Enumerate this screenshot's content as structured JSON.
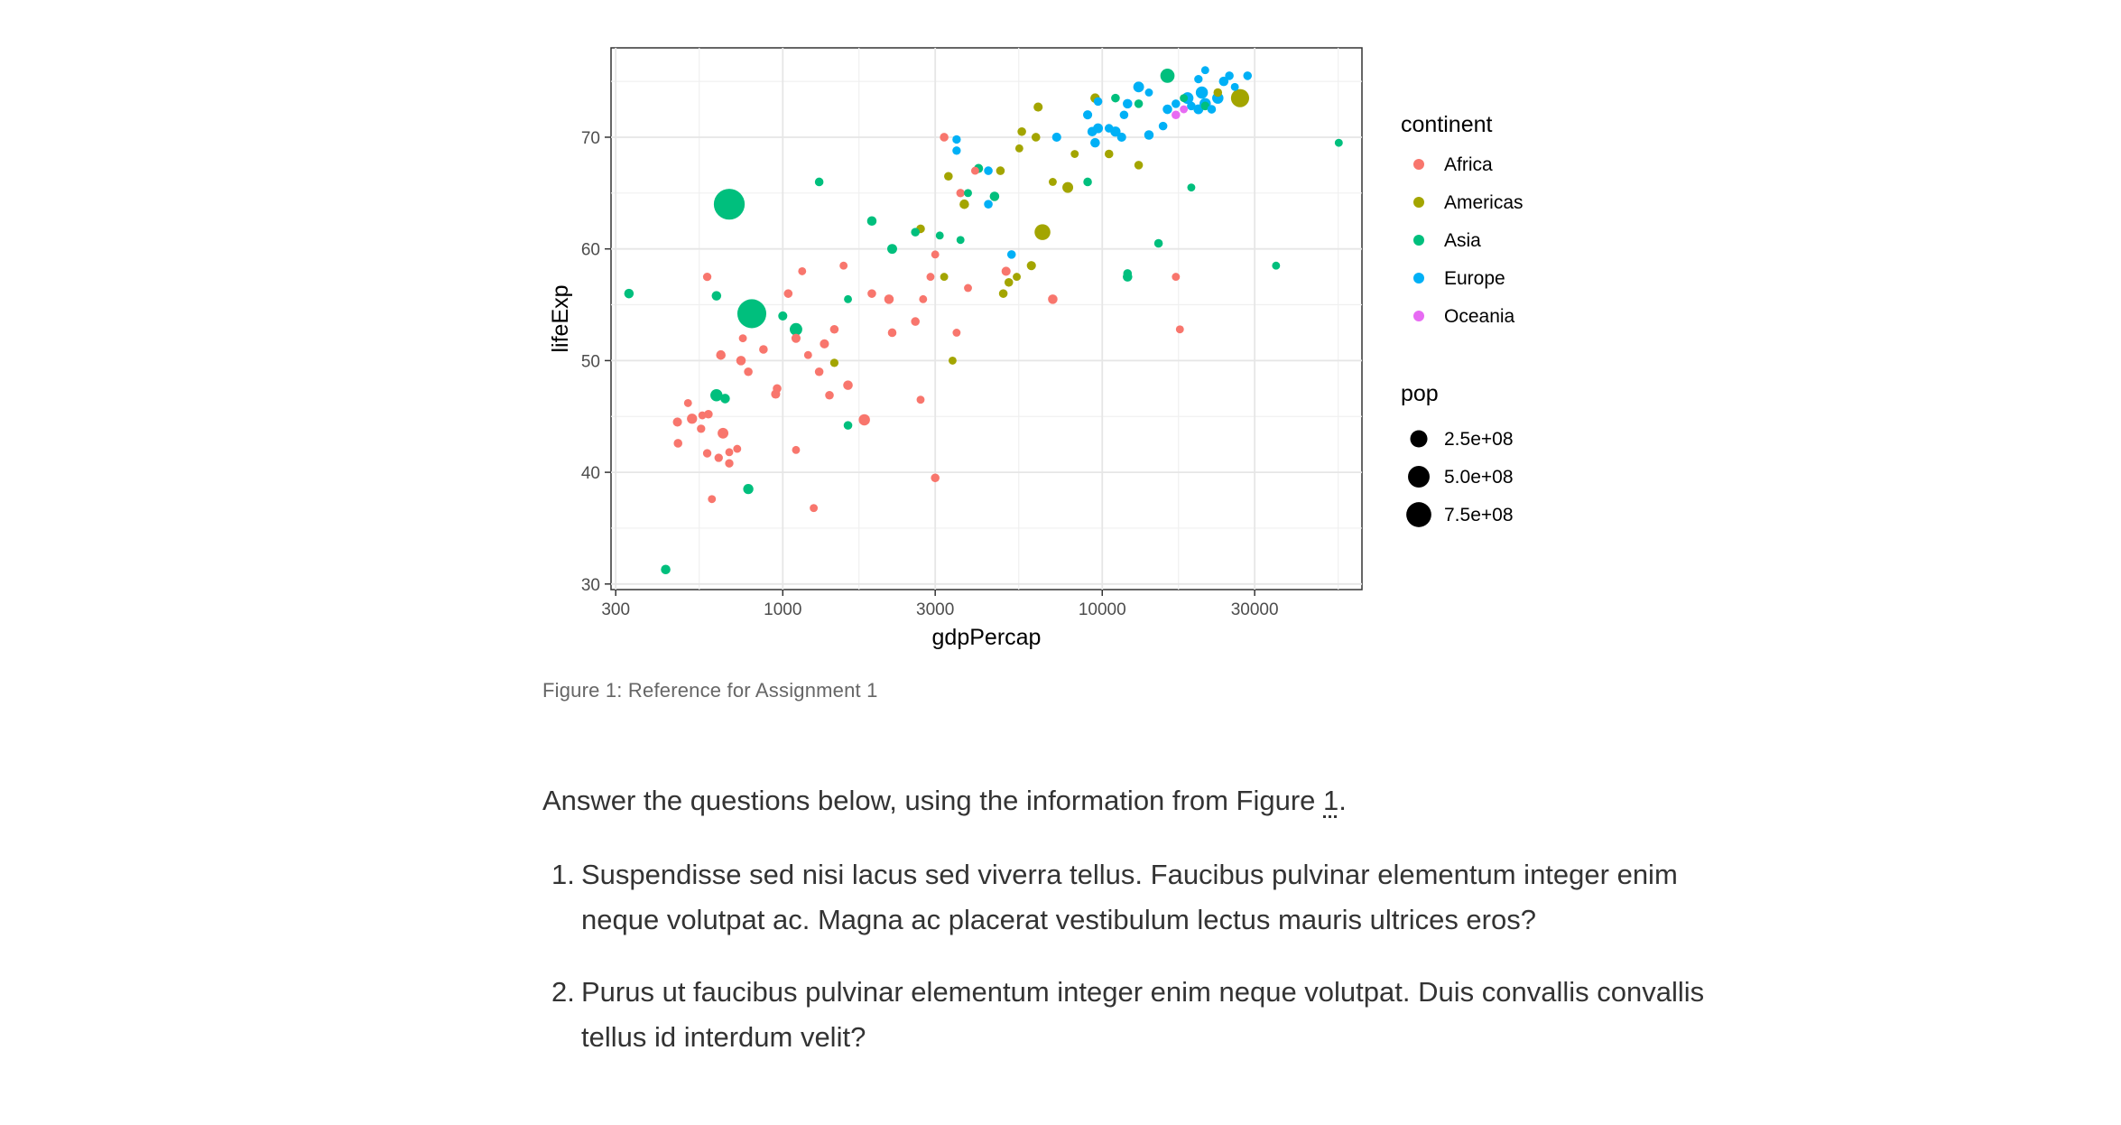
{
  "figure": {
    "caption": "Figure 1: Reference for Assignment 1"
  },
  "chart_data": {
    "type": "scatter",
    "title": "",
    "xlabel": "gdpPercap",
    "ylabel": "lifeExp",
    "x_scale": "log10",
    "xlim": [
      290,
      65000
    ],
    "ylim": [
      29.5,
      78
    ],
    "x_ticks": [
      300,
      1000,
      3000,
      10000,
      30000
    ],
    "x_tick_labels": [
      "300",
      "1000",
      "3000",
      "10000",
      "30000"
    ],
    "y_ticks": [
      30,
      40,
      50,
      60,
      70
    ],
    "y_tick_labels": [
      "30",
      "40",
      "50",
      "60",
      "70"
    ],
    "grid": true,
    "legend_position": "right",
    "legend": {
      "color_title": "continent",
      "size_title": "pop",
      "size_breaks": [
        {
          "label": "2.5e+08",
          "value": 250000000
        },
        {
          "label": "5.0e+08",
          "value": 500000000
        },
        {
          "label": "7.5e+08",
          "value": 750000000
        }
      ]
    },
    "series": [
      {
        "name": "Africa",
        "color": "#F8766D",
        "points": [
          [
            468,
            44.5,
            15000000
          ],
          [
            520,
            44.8,
            30000000
          ],
          [
            585,
            45.2,
            10000000
          ],
          [
            470,
            42.6,
            10000000
          ],
          [
            505,
            46.2,
            5000000
          ],
          [
            555,
            43.9,
            8000000
          ],
          [
            560,
            45.1,
            5000000
          ],
          [
            650,
            43.5,
            40000000
          ],
          [
            580,
            41.7,
            8000000
          ],
          [
            630,
            41.3,
            8000000
          ],
          [
            680,
            41.8,
            5000000
          ],
          [
            720,
            42.1,
            5000000
          ],
          [
            680,
            40.8,
            8000000
          ],
          [
            600,
            37.6,
            5000000
          ],
          [
            640,
            50.5,
            20000000
          ],
          [
            740,
            50.0,
            20000000
          ],
          [
            780,
            49.0,
            10000000
          ],
          [
            870,
            51.0,
            10000000
          ],
          [
            950,
            47.0,
            15000000
          ],
          [
            960,
            47.5,
            10000000
          ],
          [
            1100,
            52.0,
            15000000
          ],
          [
            1200,
            50.5,
            5000000
          ],
          [
            1300,
            49.0,
            10000000
          ],
          [
            1350,
            51.5,
            15000000
          ],
          [
            1450,
            52.8,
            10000000
          ],
          [
            1400,
            46.9,
            10000000
          ],
          [
            1600,
            47.8,
            20000000
          ],
          [
            1100,
            42.0,
            5000000
          ],
          [
            1250,
            36.8,
            5000000
          ],
          [
            750,
            52.0,
            5000000
          ],
          [
            580,
            57.5,
            8000000
          ],
          [
            1040,
            56.0,
            10000000
          ],
          [
            1150,
            58.0,
            5000000
          ],
          [
            1550,
            58.5,
            5000000
          ],
          [
            1900,
            56.0,
            10000000
          ],
          [
            2150,
            55.5,
            20000000
          ],
          [
            2750,
            55.5,
            5000000
          ],
          [
            2600,
            53.5,
            10000000
          ],
          [
            2200,
            52.5,
            10000000
          ],
          [
            1800,
            44.7,
            50000000
          ],
          [
            2700,
            46.5,
            5000000
          ],
          [
            3000,
            59.5,
            5000000
          ],
          [
            2900,
            57.5,
            5000000
          ],
          [
            3000,
            39.5,
            10000000
          ],
          [
            3800,
            56.5,
            5000000
          ],
          [
            5000,
            58.0,
            15000000
          ],
          [
            3500,
            52.5,
            5000000
          ],
          [
            7000,
            55.5,
            20000000
          ],
          [
            17000,
            57.5,
            5000000
          ],
          [
            17500,
            52.8,
            5000000
          ],
          [
            3600,
            65.0,
            8000000
          ],
          [
            4000,
            67.0,
            5000000
          ],
          [
            3200,
            70.0,
            10000000
          ]
        ]
      },
      {
        "name": "Americas",
        "color": "#A3A500",
        "points": [
          [
            1450,
            49.8,
            8000000
          ],
          [
            2700,
            61.8,
            10000000
          ],
          [
            3200,
            57.5,
            5000000
          ],
          [
            3300,
            66.5,
            10000000
          ],
          [
            3700,
            64.0,
            20000000
          ],
          [
            3400,
            50.0,
            5000000
          ],
          [
            4800,
            67.0,
            10000000
          ],
          [
            4900,
            56.0,
            10000000
          ],
          [
            5100,
            57.0,
            10000000
          ],
          [
            5400,
            57.5,
            5000000
          ],
          [
            5500,
            69.0,
            5000000
          ],
          [
            5600,
            70.5,
            10000000
          ],
          [
            6000,
            58.5,
            15000000
          ],
          [
            6500,
            61.5,
            190000000
          ],
          [
            6200,
            70.0,
            10000000
          ],
          [
            6300,
            72.7,
            15000000
          ],
          [
            7000,
            66.0,
            5000000
          ],
          [
            7800,
            65.5,
            40000000
          ],
          [
            8200,
            68.5,
            5000000
          ],
          [
            9500,
            73.5,
            20000000
          ],
          [
            10500,
            68.5,
            10000000
          ],
          [
            13000,
            67.5,
            10000000
          ],
          [
            27000,
            73.5,
            300000000
          ],
          [
            23000,
            74.0,
            10000000
          ]
        ]
      },
      {
        "name": "Asia",
        "color": "#00BF7D",
        "points": [
          [
            330,
            56.0,
            20000000
          ],
          [
            430,
            31.3,
            20000000
          ],
          [
            620,
            46.9,
            70000000
          ],
          [
            660,
            46.6,
            20000000
          ],
          [
            620,
            55.8,
            20000000
          ],
          [
            680,
            64.0,
            1300000000
          ],
          [
            800,
            54.2,
            1100000000
          ],
          [
            780,
            38.5,
            30000000
          ],
          [
            1000,
            54.0,
            15000000
          ],
          [
            1100,
            52.8,
            80000000
          ],
          [
            1600,
            55.5,
            5000000
          ],
          [
            1300,
            66.0,
            10000000
          ],
          [
            1600,
            44.2,
            10000000
          ],
          [
            1900,
            62.5,
            20000000
          ],
          [
            2200,
            60.0,
            25000000
          ],
          [
            2600,
            61.5,
            10000000
          ],
          [
            3100,
            61.2,
            5000000
          ],
          [
            3600,
            60.8,
            5000000
          ],
          [
            3800,
            65.0,
            5000000
          ],
          [
            4100,
            67.2,
            15000000
          ],
          [
            4600,
            64.7,
            20000000
          ],
          [
            9000,
            66.0,
            10000000
          ],
          [
            12000,
            57.8,
            10000000
          ],
          [
            12000,
            57.5,
            20000000
          ],
          [
            15000,
            60.5,
            10000000
          ],
          [
            11000,
            73.5,
            10000000
          ],
          [
            13000,
            73.0,
            10000000
          ],
          [
            16000,
            75.5,
            130000000
          ],
          [
            19000,
            65.5,
            5000000
          ],
          [
            21000,
            72.8,
            10000000
          ],
          [
            35000,
            58.5,
            5000000
          ],
          [
            55000,
            69.5,
            5000000
          ],
          [
            18000,
            73.5,
            5000000
          ]
        ]
      },
      {
        "name": "Europe",
        "color": "#00B0F6",
        "points": [
          [
            3500,
            69.8,
            8000000
          ],
          [
            3500,
            68.8,
            8000000
          ],
          [
            4400,
            64.0,
            10000000
          ],
          [
            4400,
            67.0,
            10000000
          ],
          [
            5200,
            59.5,
            10000000
          ],
          [
            7200,
            70.0,
            15000000
          ],
          [
            9300,
            70.5,
            20000000
          ],
          [
            9700,
            70.8,
            25000000
          ],
          [
            11000,
            70.5,
            30000000
          ],
          [
            11500,
            70.0,
            15000000
          ],
          [
            11700,
            72.0,
            10000000
          ],
          [
            9000,
            72.0,
            15000000
          ],
          [
            14000,
            70.2,
            20000000
          ],
          [
            15500,
            71.0,
            10000000
          ],
          [
            16000,
            72.5,
            20000000
          ],
          [
            17000,
            73.0,
            10000000
          ],
          [
            18500,
            73.5,
            60000000
          ],
          [
            19000,
            72.8,
            10000000
          ],
          [
            20000,
            72.5,
            25000000
          ],
          [
            20500,
            74.0,
            70000000
          ],
          [
            21000,
            73.0,
            50000000
          ],
          [
            22000,
            72.5,
            10000000
          ],
          [
            23000,
            73.5,
            50000000
          ],
          [
            24000,
            75.0,
            20000000
          ],
          [
            25000,
            75.5,
            10000000
          ],
          [
            26000,
            74.5,
            5000000
          ],
          [
            28500,
            75.5,
            10000000
          ],
          [
            20000,
            75.2,
            8000000
          ],
          [
            21000,
            76.0,
            5000000
          ],
          [
            12000,
            73.0,
            20000000
          ],
          [
            13000,
            74.5,
            40000000
          ],
          [
            9700,
            73.2,
            10000000
          ],
          [
            14000,
            74.0,
            5000000
          ],
          [
            10500,
            70.8,
            10000000
          ],
          [
            9500,
            69.5,
            20000000
          ]
        ]
      },
      {
        "name": "Oceania",
        "color": "#E76BF3",
        "points": [
          [
            17000,
            72.0,
            10000000
          ],
          [
            18000,
            72.5,
            5000000
          ]
        ]
      }
    ]
  },
  "intro": {
    "before": "Answer the questions below, using the information from Figure ",
    "ref": "1",
    "after": "."
  },
  "questions": [
    {
      "number": "1.",
      "text": "Suspendisse sed nisi lacus sed viverra tellus. Faucibus pulvinar elementum integer enim neque volutpat ac. Magna ac placerat vestibulum lectus mauris ultrices eros?"
    },
    {
      "number": "2.",
      "text": "Purus ut faucibus pulvinar elementum integer enim neque volutpat. Duis convallis convallis tellus id interdum velit?"
    }
  ]
}
